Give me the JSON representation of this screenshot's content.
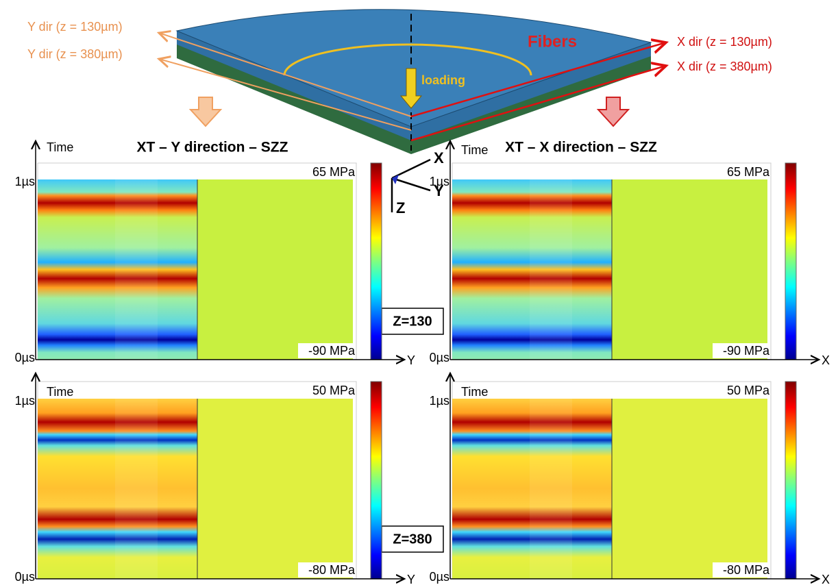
{
  "header": {
    "y_dir_130": "Y dir (z = 130µm)",
    "y_dir_380": "Y dir (z = 380µm)",
    "fibers": "Fibers",
    "x_dir_130": "X dir (z = 130µm)",
    "x_dir_380": "X dir (z = 380µm)",
    "loading": "loading"
  },
  "titles": [
    "XT – Y direction – SZZ",
    "XT – X direction – SZZ"
  ],
  "triad": [
    "X",
    "Y",
    "Z"
  ],
  "depth_labels": [
    "Z=130",
    "Z=380"
  ],
  "panels": [
    {
      "time_label": "Time",
      "top_label": "1µs",
      "bottom_label": "0µs",
      "max_label": "65 MPa",
      "min_label": "-90 MPa",
      "axis_label": "Y"
    },
    {
      "time_label": "Time",
      "top_label": "1µs",
      "bottom_label": "0µs",
      "max_label": "65 MPa",
      "min_label": "-90 MPa",
      "axis_label": "X"
    },
    {
      "time_label": "Time",
      "top_label": "1µs",
      "bottom_label": "0µs",
      "max_label": "50 MPa",
      "min_label": "-80 MPa",
      "axis_label": "Y"
    },
    {
      "time_label": "Time",
      "top_label": "1µs",
      "bottom_label": "0µs",
      "max_label": "50 MPa",
      "min_label": "-80 MPa",
      "axis_label": "X"
    }
  ]
}
